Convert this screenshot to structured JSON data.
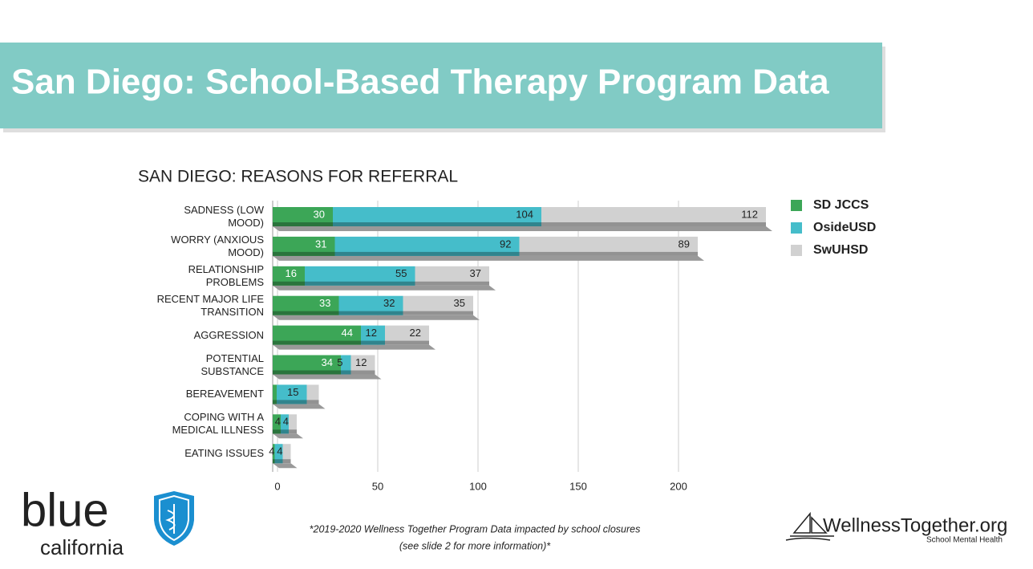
{
  "header": {
    "title": "San Diego: School-Based Therapy Program Data"
  },
  "chart_data": {
    "type": "stacked_barh",
    "title": "SAN DIEGO: REASONS FOR REFERRAL",
    "categories": [
      "SADNESS (LOW\nMOOD)",
      "WORRY (ANXIOUS\nMOOD)",
      "RELATIONSHIP\nPROBLEMS",
      "RECENT MAJOR LIFE\nTRANSITION",
      "AGGRESSION",
      "POTENTIAL\nSUBSTANCE",
      "BEREAVEMENT",
      "COPING WITH A\nMEDICAL ILLNESS",
      "EATING ISSUES"
    ],
    "series": [
      {
        "name": "SD JCCS",
        "color": "#3ca657",
        "values": [
          30,
          31,
          16,
          33,
          44,
          34,
          2,
          4,
          1
        ]
      },
      {
        "name": "OsideUSD",
        "color": "#45bdca",
        "values": [
          104,
          92,
          55,
          32,
          12,
          5,
          15,
          4,
          4
        ]
      },
      {
        "name": "SwUHSD",
        "color": "#d1d1d1",
        "values": [
          112,
          89,
          37,
          35,
          22,
          12,
          6,
          4,
          4
        ],
        "value_labels": [
          "112",
          "89",
          "37",
          "35",
          "22",
          "12",
          null,
          "4",
          "4"
        ]
      }
    ],
    "xlim": [
      0,
      250
    ],
    "xticks": [
      0,
      50,
      100,
      150,
      200
    ],
    "grid": true,
    "legend": "right"
  },
  "footnote": [
    "*2019-2020 Wellness Together Program Data impacted by school closures",
    "(see slide 2 for more information)*"
  ],
  "logos": {
    "left": [
      "blue",
      "california"
    ],
    "right": [
      "WellnessTogether.org",
      "School Mental Health"
    ]
  }
}
